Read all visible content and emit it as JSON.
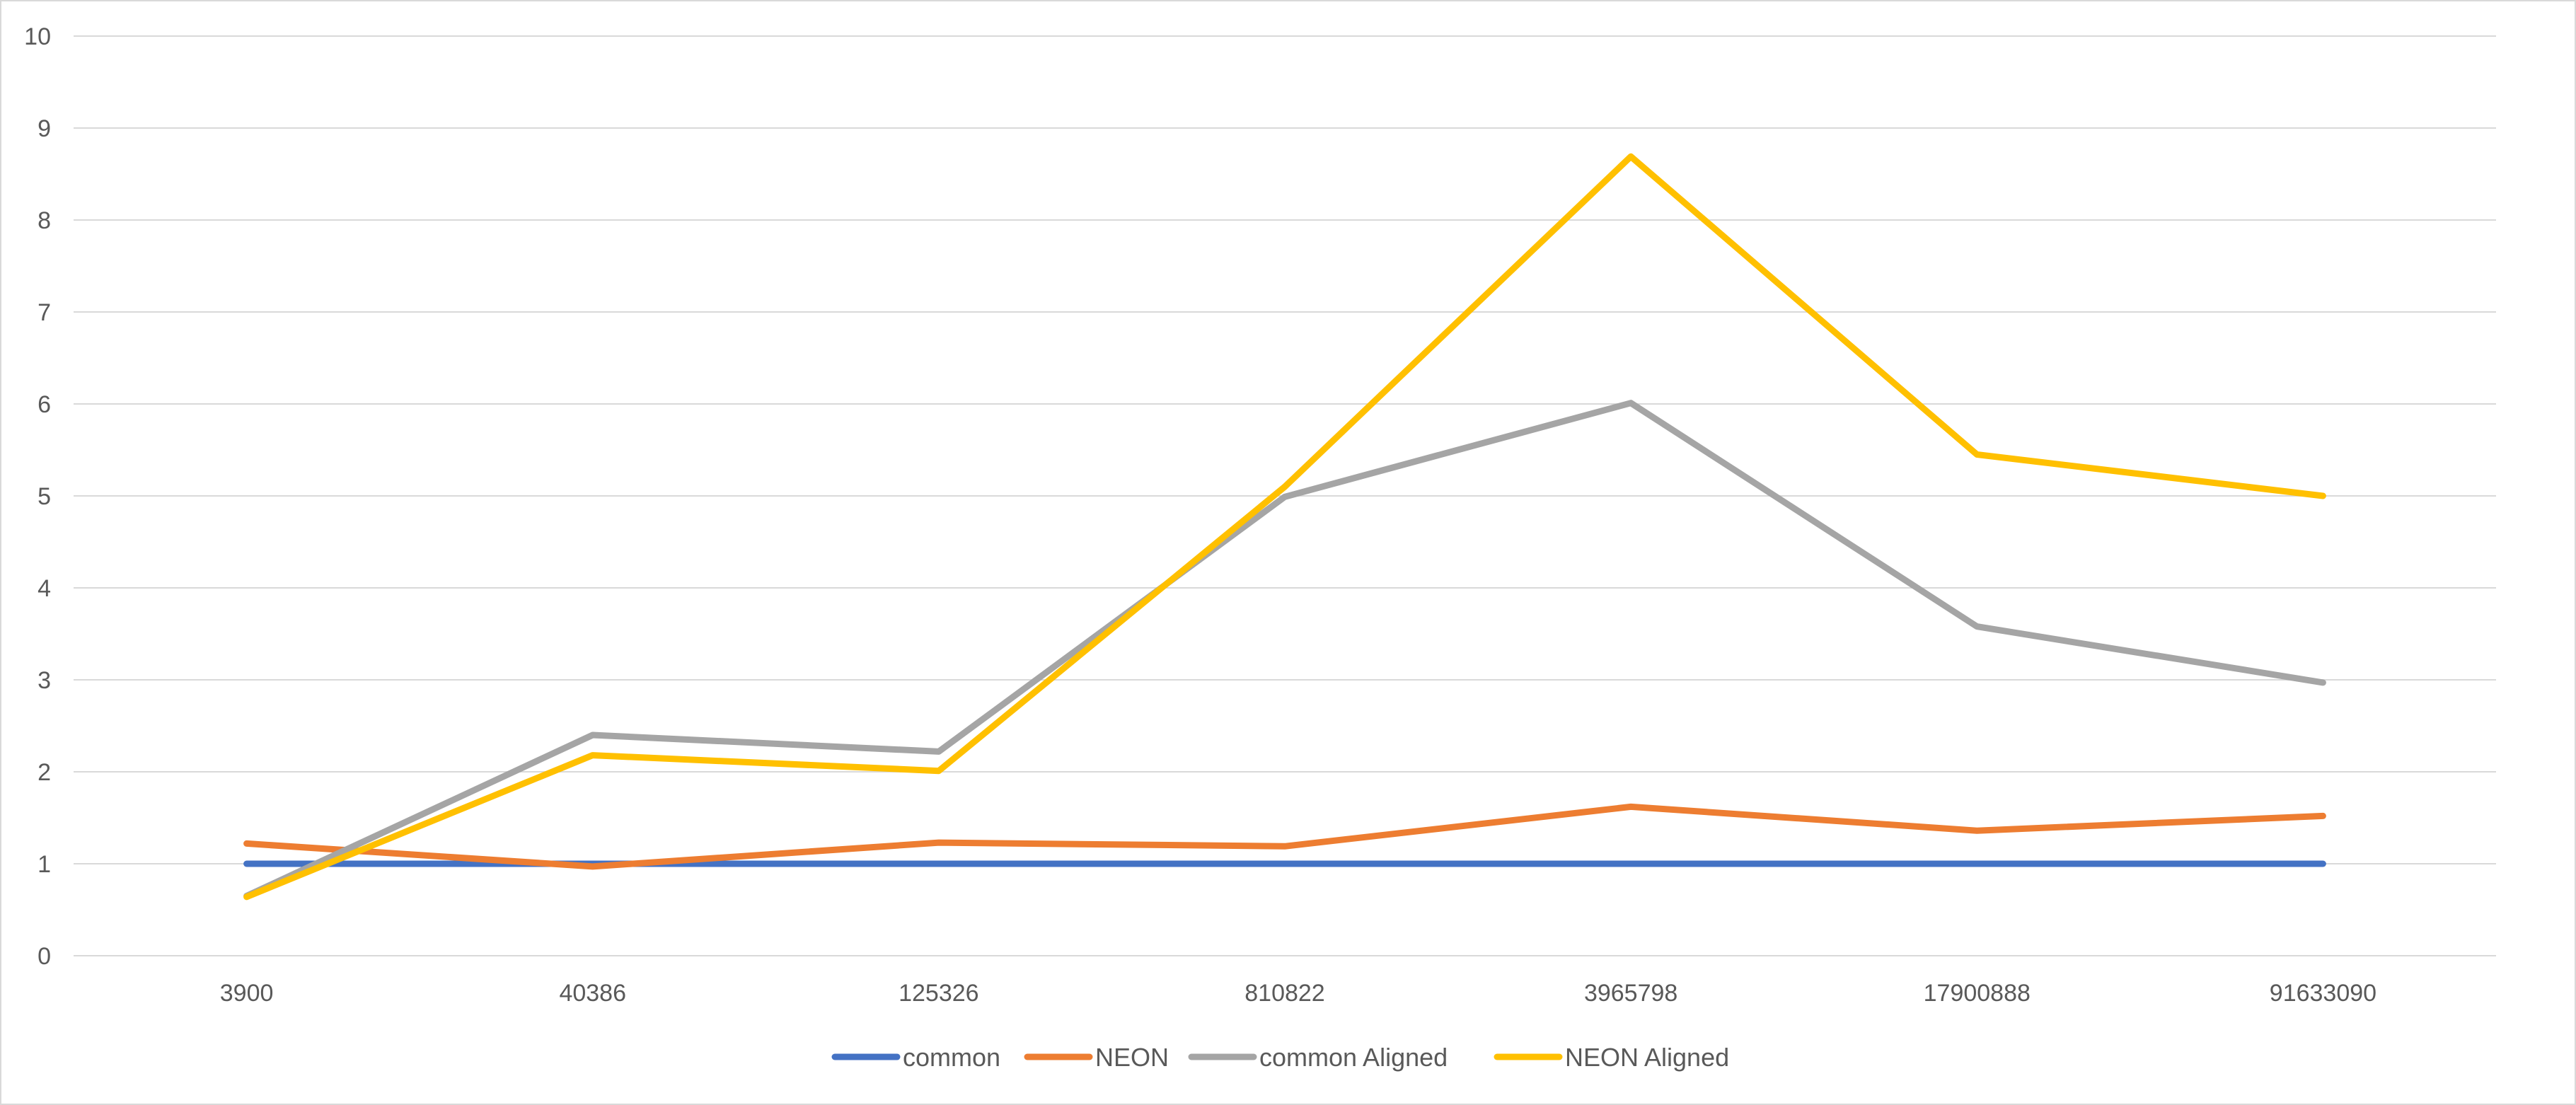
{
  "chart_data": {
    "type": "line",
    "categories": [
      "3900",
      "40386",
      "125326",
      "810822",
      "3965798",
      "17900888",
      "91633090"
    ],
    "series": [
      {
        "name": "common",
        "color": "#4472c4",
        "values": [
          1,
          1,
          1,
          1,
          1,
          1,
          1
        ]
      },
      {
        "name": "NEON",
        "color": "#ed7d31",
        "values": [
          1.22,
          0.97,
          1.23,
          1.19,
          1.62,
          1.36,
          1.52
        ]
      },
      {
        "name": "common Aligned",
        "color": "#a5a5a5",
        "values": [
          0.65,
          2.4,
          2.22,
          4.99,
          6.01,
          3.58,
          2.97
        ]
      },
      {
        "name": "NEON Aligned",
        "color": "#ffc000",
        "values": [
          0.64,
          2.18,
          2.01,
          5.1,
          8.69,
          5.45,
          5.0
        ]
      }
    ],
    "ylim": [
      0,
      10
    ],
    "yticks": [
      "0",
      "1",
      "2",
      "3",
      "4",
      "5",
      "6",
      "7",
      "8",
      "9",
      "10"
    ],
    "grid": true,
    "legend": "bottom-center"
  }
}
